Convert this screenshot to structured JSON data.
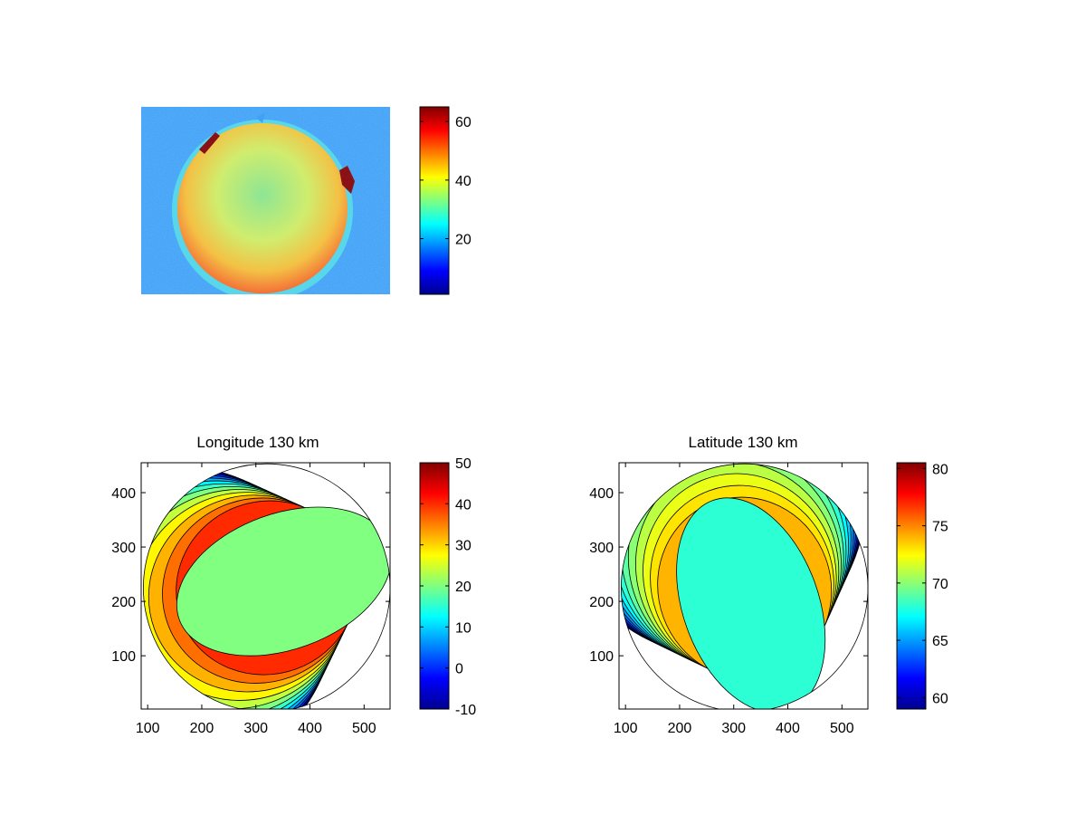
{
  "chart_data": [
    {
      "type": "heatmap",
      "title": "",
      "description_panel": "image",
      "colorbar": {
        "ticks": [
          20,
          40,
          60
        ],
        "range": [
          1,
          65
        ],
        "colormap": "jet"
      },
      "colors": {
        "background": "#3399ff",
        "disk_mid": "#9ce874",
        "disk_edge": "#ff6633",
        "spot": "#8b0000"
      }
    },
    {
      "type": "heatmap",
      "title": "Longitude 130 km",
      "xlabel": "",
      "ylabel": "",
      "xticks": [
        100,
        200,
        300,
        400,
        500
      ],
      "yticks": [
        100,
        200,
        300,
        400
      ],
      "xlim": [
        88,
        548
      ],
      "ylim": [
        2,
        455
      ],
      "disk": {
        "cx": 320,
        "cy": 225,
        "r": 228
      },
      "colorbar": {
        "ticks": [
          -10,
          0,
          10,
          20,
          30,
          40,
          50
        ],
        "range": [
          -10,
          50
        ],
        "colormap": "jet"
      },
      "contour_levels": [
        -8,
        -4,
        0,
        4,
        8,
        12,
        16,
        20,
        24,
        28,
        32,
        36,
        40
      ],
      "gradient_axis_deg": 160,
      "center_value": 20
    },
    {
      "type": "heatmap",
      "title": "Latitude 130 km",
      "xlabel": "",
      "ylabel": "",
      "xticks": [
        100,
        200,
        300,
        400,
        500
      ],
      "yticks": [
        100,
        200,
        300,
        400
      ],
      "xlim": [
        88,
        548
      ],
      "ylim": [
        2,
        455
      ],
      "disk": {
        "cx": 320,
        "cy": 225,
        "r": 228
      },
      "colorbar": {
        "ticks": [
          60,
          65,
          70,
          75,
          80
        ],
        "range": [
          59,
          80.5
        ],
        "colormap": "jet"
      },
      "contour_levels": [
        60,
        61,
        62,
        63,
        64,
        65,
        66,
        67,
        68,
        69,
        70,
        71,
        72,
        73,
        74
      ],
      "gradient_axis_deg": 250,
      "center_value": 68
    }
  ]
}
